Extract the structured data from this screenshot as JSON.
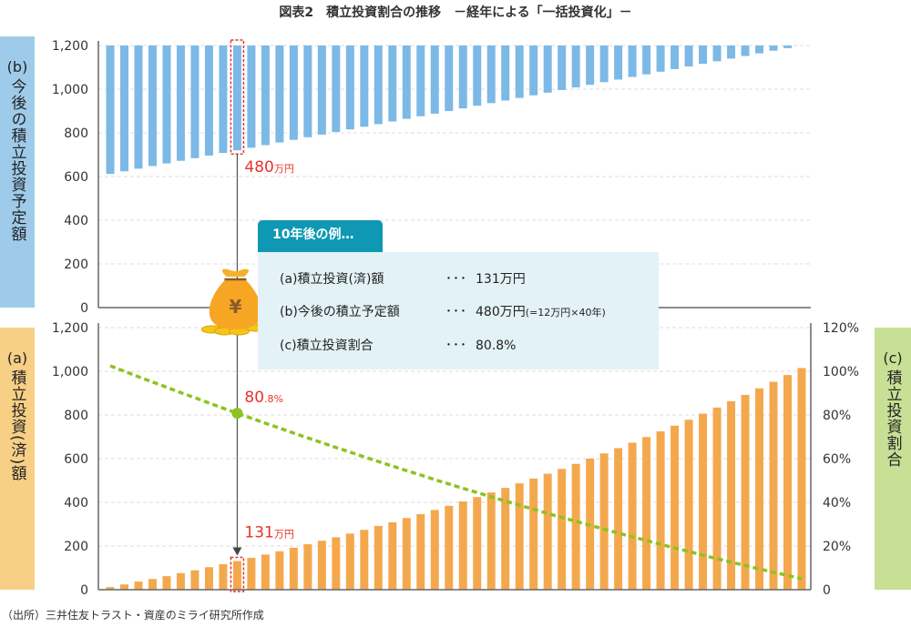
{
  "title": "図表2　積立投資割合の推移　－経年による「一括投資化」－",
  "source": "（出所）三井住友トラスト・資産のミライ研究所作成",
  "colors": {
    "top_bars": "#7cb9e6",
    "bottom_bars": "#f4a84e",
    "ratio_line": "#8cc320",
    "highlight": "#e8332a",
    "callout_tab": "#0e98b3",
    "callout_body": "#e3f2f7"
  },
  "icons": {
    "money_bag": "money-bag-yen-icon"
  },
  "side_labels": {
    "b": {
      "tag": "(b)",
      "text": "今後の積立投資予定額"
    },
    "a": {
      "tag": "(a)",
      "text": "積立投資(済)額"
    },
    "c": {
      "tag": "(c)",
      "text": "積立投資割合"
    }
  },
  "callout": {
    "title": "10年後の例…",
    "rows": [
      {
        "label": "(a)積立投資(済)額",
        "dots": "･･･",
        "value": "131万円",
        "note": ""
      },
      {
        "label": "(b)今後の積立予定額",
        "dots": "･･･",
        "value": "480万円",
        "note": "(=12万円×40年)"
      },
      {
        "label": "(c)積立投資割合",
        "dots": "･･･",
        "value": "80.8%",
        "note": ""
      }
    ]
  },
  "annotations": {
    "top": {
      "value": "480",
      "unit": "万円"
    },
    "bottom": {
      "value": "131",
      "unit": "万円"
    },
    "ratio": {
      "value": "80",
      "unit": ".8%"
    },
    "year": 10
  },
  "chart_data": [
    {
      "type": "bar",
      "panel": "top",
      "ylabel": "(b) 今後の積立投資予定額",
      "ylim": [
        0,
        1200
      ],
      "yticks": [
        "0",
        "200",
        "400",
        "600",
        "800",
        "1,000",
        "1,200"
      ],
      "orientation": "hanging from top",
      "x": [
        1,
        2,
        3,
        4,
        5,
        6,
        7,
        8,
        9,
        10,
        11,
        12,
        13,
        14,
        15,
        16,
        17,
        18,
        19,
        20,
        21,
        22,
        23,
        24,
        25,
        26,
        27,
        28,
        29,
        30,
        31,
        32,
        33,
        34,
        35,
        36,
        37,
        38,
        39,
        40,
        41,
        42,
        43,
        44,
        45,
        46,
        47,
        48,
        49,
        50
      ],
      "values": [
        588,
        576,
        564,
        552,
        540,
        528,
        516,
        504,
        492,
        480,
        468,
        456,
        444,
        432,
        420,
        408,
        396,
        384,
        372,
        360,
        348,
        336,
        324,
        312,
        300,
        288,
        276,
        264,
        252,
        240,
        228,
        216,
        204,
        192,
        180,
        168,
        156,
        144,
        132,
        120,
        108,
        96,
        84,
        72,
        60,
        48,
        36,
        24,
        12,
        0
      ],
      "grid": true
    },
    {
      "type": "bar+line",
      "panel": "bottom",
      "ylabel_left": "(a) 積立投資(済)額",
      "ylabel_right": "(c) 積立投資割合",
      "ylim_left": [
        0,
        1200
      ],
      "ylim_right": [
        0,
        120
      ],
      "yticks_left": [
        "0",
        "200",
        "400",
        "600",
        "800",
        "1,000",
        "1,200"
      ],
      "yticks_right": [
        "0",
        "20%",
        "40%",
        "60%",
        "80%",
        "100%",
        "120%"
      ],
      "x": [
        1,
        2,
        3,
        4,
        5,
        6,
        7,
        8,
        9,
        10,
        11,
        12,
        13,
        14,
        15,
        16,
        17,
        18,
        19,
        20,
        21,
        22,
        23,
        24,
        25,
        26,
        27,
        28,
        29,
        30,
        31,
        32,
        33,
        34,
        35,
        36,
        37,
        38,
        39,
        40,
        41,
        42,
        43,
        44,
        45,
        46,
        47,
        48,
        49,
        50
      ],
      "bar_values": [
        12,
        24,
        37,
        49,
        62,
        76,
        89,
        103,
        117,
        131,
        146,
        161,
        176,
        192,
        208,
        224,
        240,
        257,
        274,
        292,
        309,
        328,
        346,
        365,
        384,
        404,
        424,
        445,
        466,
        487,
        509,
        531,
        553,
        576,
        600,
        624,
        648,
        673,
        699,
        725,
        751,
        778,
        806,
        834,
        863,
        892,
        922,
        952,
        983,
        1015
      ],
      "line_values": [
        102.5,
        100.0,
        97.5,
        95.1,
        92.7,
        90.2,
        87.9,
        85.5,
        83.1,
        80.8,
        78.5,
        76.2,
        74.0,
        71.7,
        69.5,
        67.3,
        65.1,
        63.0,
        60.8,
        58.7,
        56.6,
        54.5,
        52.5,
        50.4,
        48.4,
        46.4,
        44.5,
        42.5,
        40.6,
        38.7,
        36.8,
        34.9,
        33.1,
        31.3,
        29.5,
        27.7,
        25.9,
        24.2,
        22.5,
        20.8,
        19.1,
        17.5,
        15.8,
        14.2,
        12.6,
        11.1,
        9.5,
        8.0,
        6.5,
        5.0
      ],
      "line_style": "dotted",
      "grid": true
    }
  ]
}
